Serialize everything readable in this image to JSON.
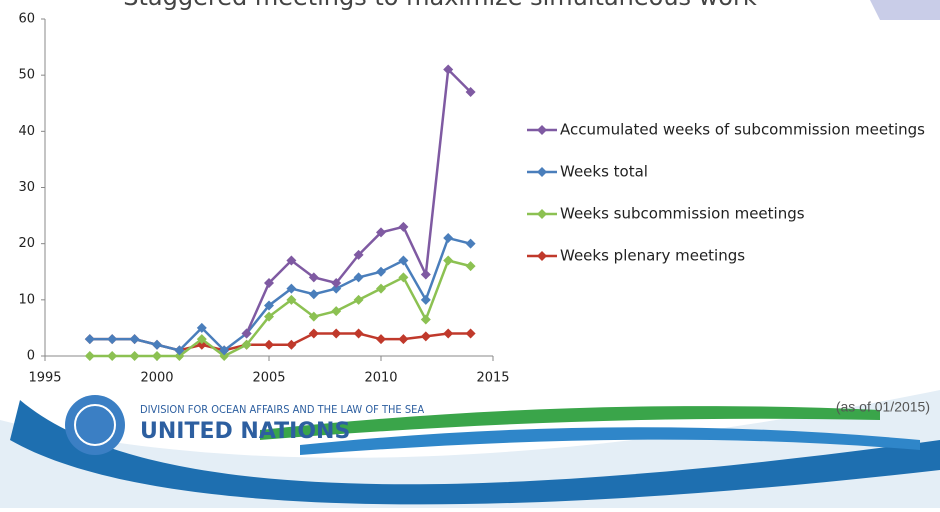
{
  "chart_data": {
    "type": "line",
    "title": "Staggered meetings to maximize simultaneous work",
    "x": [
      1997,
      1998,
      1999,
      2000,
      2001,
      2002,
      2003,
      2004,
      2005,
      2006,
      2007,
      2008,
      2009,
      2010,
      2011,
      2012,
      2013,
      2014
    ],
    "series": [
      {
        "name": "Accumulated weeks of subcommission meetings",
        "color": "#7f5aa2",
        "values": [
          null,
          null,
          null,
          null,
          null,
          null,
          null,
          4,
          13,
          17,
          14,
          13,
          18,
          22,
          23,
          14.5,
          51,
          47
        ]
      },
      {
        "name": "Weeks total",
        "color": "#4a7ebb",
        "values": [
          3,
          3,
          3,
          2,
          1,
          5,
          1,
          4,
          9,
          12,
          11,
          12,
          14,
          15,
          17,
          10,
          21,
          20
        ]
      },
      {
        "name": "Weeks subcommission meetings",
        "color": "#8cc152",
        "values": [
          0,
          0,
          0,
          0,
          0,
          3,
          0,
          2,
          7,
          10,
          7,
          8,
          10,
          12,
          14,
          6.5,
          17,
          16
        ]
      },
      {
        "name": "Weeks plenary meetings",
        "color": "#c0392b",
        "values": [
          3,
          3,
          3,
          2,
          1,
          2,
          1,
          2,
          2,
          2,
          4,
          4,
          4,
          3,
          3,
          3.5,
          4,
          4
        ]
      }
    ],
    "xlim": [
      1995,
      2015
    ],
    "xticks": [
      1995,
      2000,
      2005,
      2010,
      2015
    ],
    "ylim": [
      0,
      60
    ],
    "yticks": [
      0,
      10,
      20,
      30,
      40,
      50,
      60
    ],
    "legend": "right"
  },
  "footer": {
    "division": "DIVISION FOR OCEAN AFFAIRS AND THE LAW OF THE SEA",
    "organization": "UNITED NATIONS",
    "note": "(as of 01/2015)"
  }
}
